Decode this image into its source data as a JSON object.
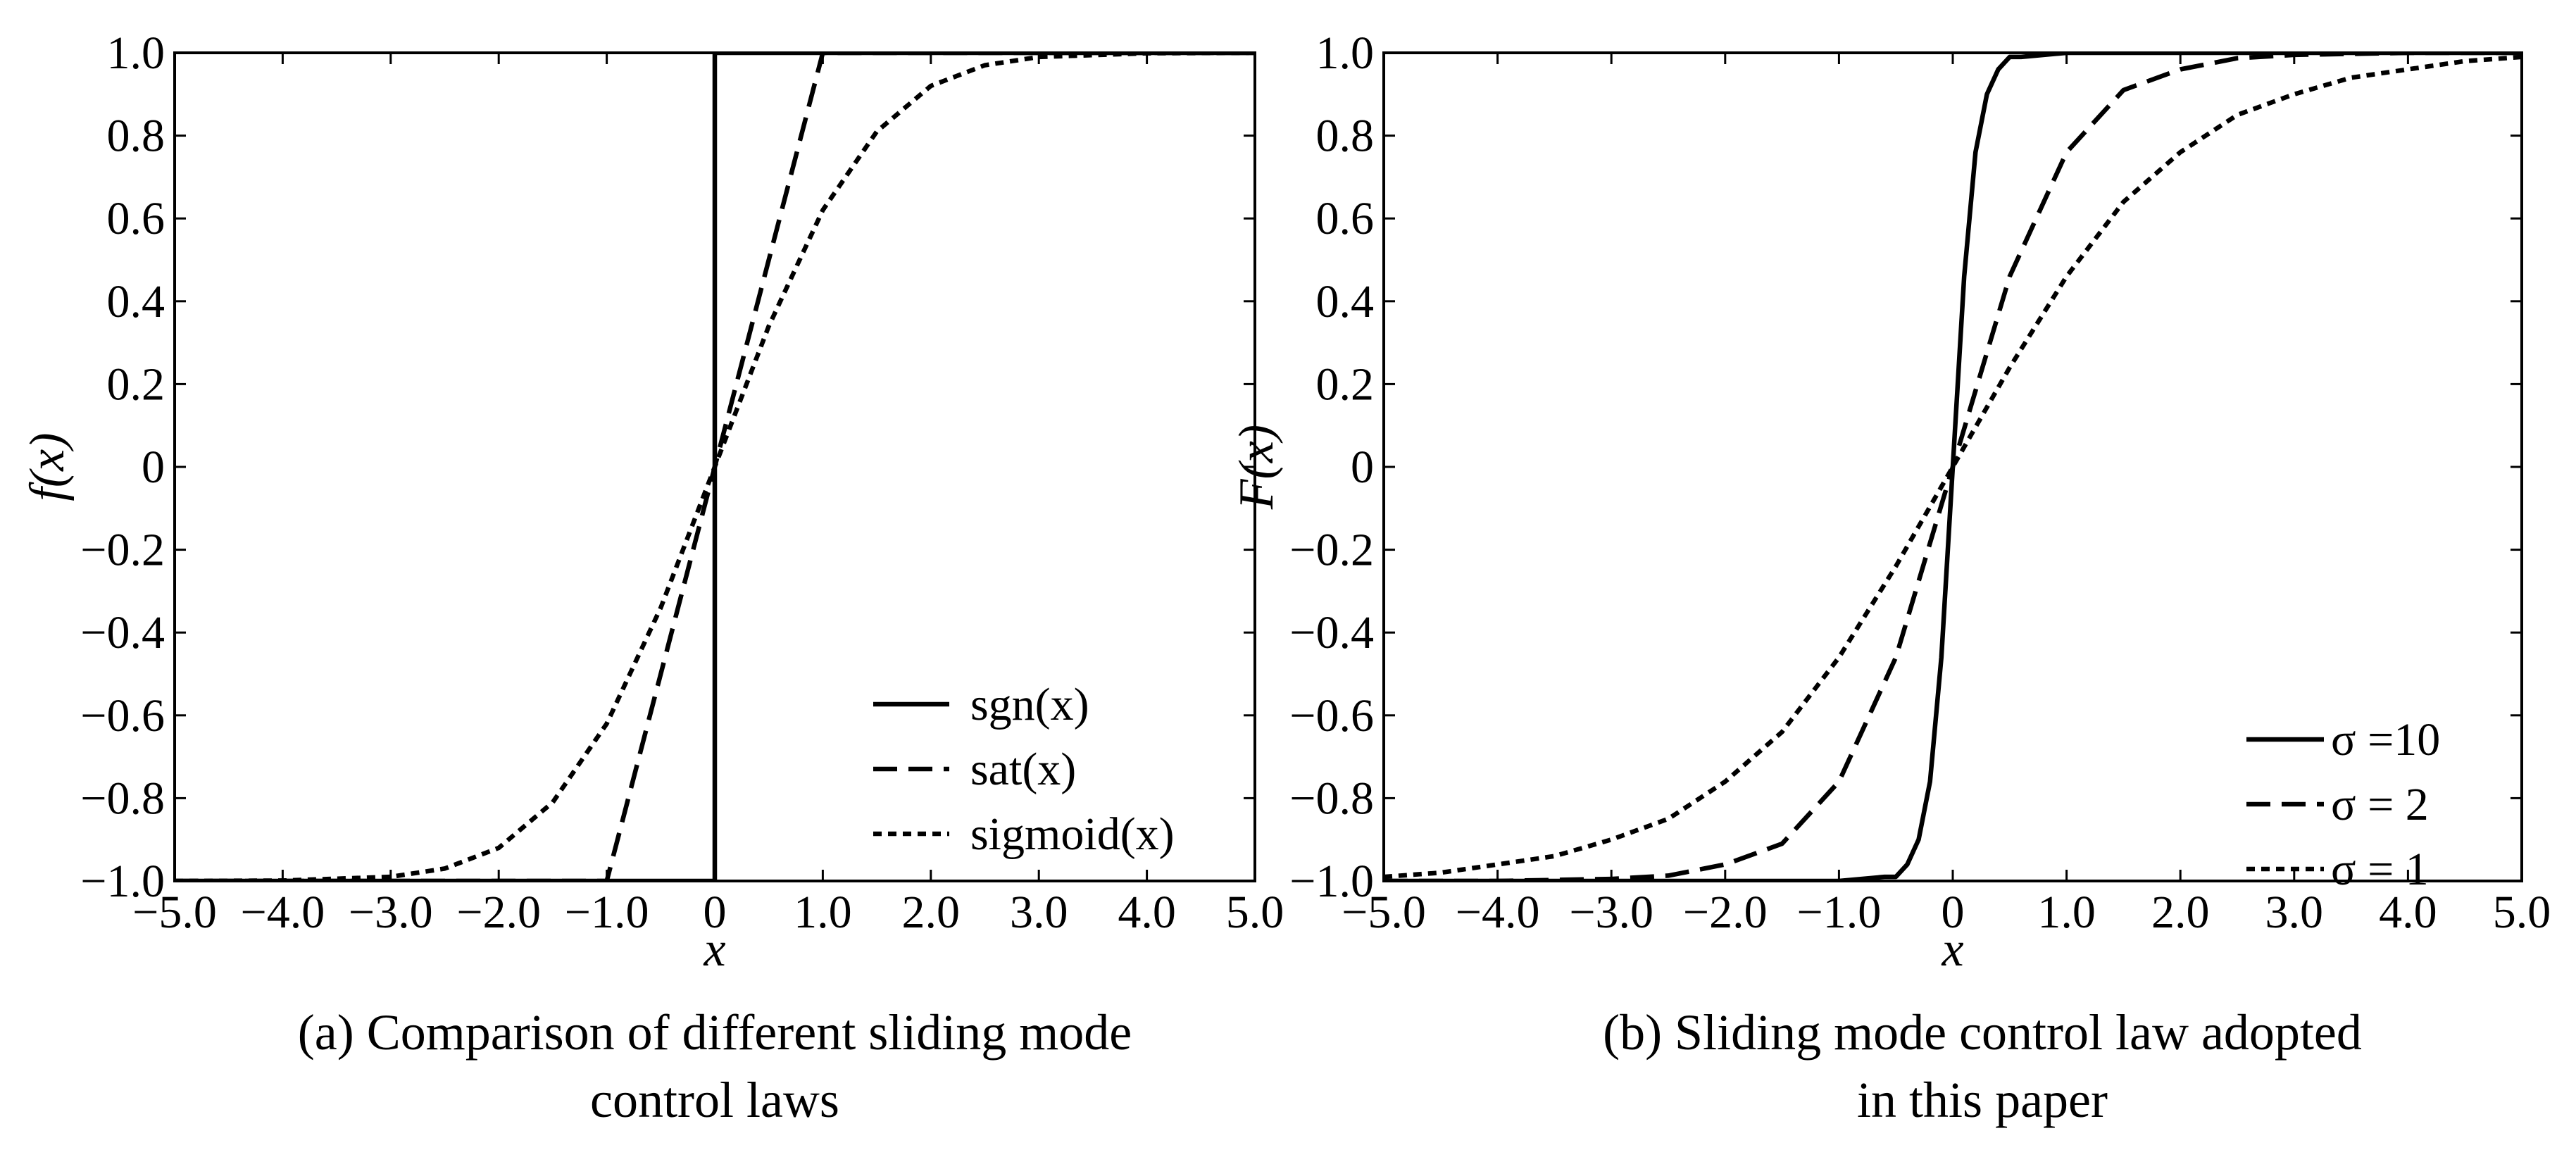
{
  "chart_data": [
    {
      "panel": "a",
      "type": "line",
      "caption": [
        "(a) Comparison of different sliding mode",
        "control laws"
      ],
      "xlabel": "x",
      "ylabel": "f(x)",
      "xlim": [
        -5.0,
        5.0
      ],
      "ylim": [
        -1.0,
        1.0
      ],
      "xticks": [
        "−5.0",
        "−4.0",
        "−3.0",
        "−2.0",
        "−1.0",
        "0",
        "1.0",
        "2.0",
        "3.0",
        "4.0",
        "5.0"
      ],
      "yticks": [
        "1.0",
        "0.8",
        "0.6",
        "0.4",
        "0.2",
        "0",
        "−0.2",
        "−0.4",
        "−0.6",
        "−0.8",
        "−1.0"
      ],
      "grid": false,
      "legend_position": "bottom-right",
      "series": [
        {
          "name": "sgn(x)",
          "style": "solid",
          "x": [
            -5.0,
            0.0,
            0.0,
            5.0
          ],
          "y": [
            -1.0,
            -1.0,
            1.0,
            1.0
          ]
        },
        {
          "name": "sat(x)",
          "style": "dashed",
          "x": [
            -5.0,
            -1.0,
            1.0,
            5.0
          ],
          "y": [
            -1.0,
            -1.0,
            1.0,
            1.0
          ]
        },
        {
          "name": "sigmoid(x)",
          "style": "dotted",
          "x": [
            -5.0,
            -4.0,
            -3.0,
            -2.5,
            -2.0,
            -1.5,
            -1.0,
            -0.5,
            0.0,
            0.5,
            1.0,
            1.5,
            2.0,
            2.5,
            3.0,
            4.0,
            5.0
          ],
          "y": [
            -1.0,
            -0.999,
            -0.99,
            -0.97,
            -0.92,
            -0.81,
            -0.62,
            -0.34,
            0.0,
            0.34,
            0.62,
            0.81,
            0.92,
            0.97,
            0.99,
            0.999,
            1.0
          ]
        }
      ]
    },
    {
      "panel": "b",
      "type": "line",
      "caption": [
        "(b) Sliding mode control law adopted",
        "in this paper"
      ],
      "xlabel": "x",
      "ylabel": "F(x)",
      "xlim": [
        -5.0,
        5.0
      ],
      "ylim": [
        -1.0,
        1.0
      ],
      "xticks": [
        "−5.0",
        "−4.0",
        "−3.0",
        "−2.0",
        "−1.0",
        "0",
        "1.0",
        "2.0",
        "3.0",
        "4.0",
        "5.0"
      ],
      "yticks": [
        "1.0",
        "0.8",
        "0.6",
        "0.4",
        "0.2",
        "0",
        "−0.2",
        "−0.4",
        "−0.6",
        "−0.8",
        "−1.0"
      ],
      "grid": false,
      "legend_position": "bottom-right",
      "series": [
        {
          "name": "σ =10",
          "style": "solid",
          "x": [
            -5.0,
            -1.0,
            -0.6,
            -0.5,
            -0.4,
            -0.3,
            -0.2,
            -0.1,
            0.0,
            0.1,
            0.2,
            0.3,
            0.4,
            0.5,
            0.6,
            1.0,
            5.0
          ],
          "y": [
            -1.0,
            -1.0,
            -0.99,
            -0.99,
            -0.96,
            -0.9,
            -0.76,
            -0.46,
            0.0,
            0.46,
            0.76,
            0.9,
            0.96,
            0.99,
            0.99,
            1.0,
            1.0
          ]
        },
        {
          "name": "σ = 2",
          "style": "dashed",
          "x": [
            -5.0,
            -4.0,
            -3.0,
            -2.5,
            -2.0,
            -1.5,
            -1.0,
            -0.5,
            0.0,
            0.5,
            1.0,
            1.5,
            2.0,
            2.5,
            3.0,
            4.0,
            5.0
          ],
          "y": [
            -1.0,
            -1.0,
            -0.995,
            -0.987,
            -0.96,
            -0.91,
            -0.76,
            -0.46,
            0.0,
            0.46,
            0.76,
            0.91,
            0.96,
            0.987,
            0.995,
            1.0,
            1.0
          ]
        },
        {
          "name": "σ = 1",
          "style": "dotted",
          "x": [
            -5.0,
            -4.5,
            -4.0,
            -3.5,
            -3.0,
            -2.5,
            -2.0,
            -1.5,
            -1.0,
            -0.5,
            0.0,
            0.5,
            1.0,
            1.5,
            2.0,
            2.5,
            3.0,
            3.5,
            4.0,
            4.5,
            5.0
          ],
          "y": [
            -0.99,
            -0.98,
            -0.96,
            -0.94,
            -0.9,
            -0.85,
            -0.76,
            -0.64,
            -0.46,
            -0.24,
            0.0,
            0.24,
            0.46,
            0.64,
            0.76,
            0.85,
            0.9,
            0.94,
            0.96,
            0.98,
            0.99
          ]
        }
      ]
    }
  ]
}
